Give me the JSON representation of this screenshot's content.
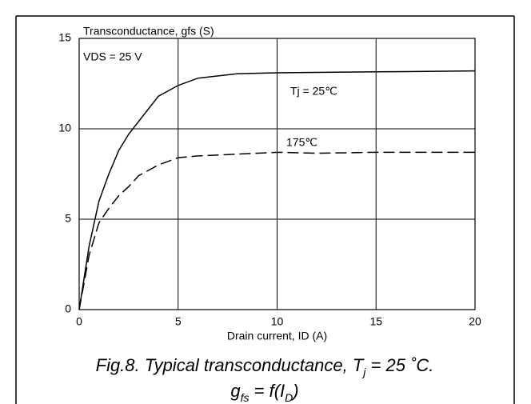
{
  "chart_data": {
    "type": "line",
    "ylabel": "Transconductance, gfs (S)",
    "xlabel": "Drain current, ID (A)",
    "annotations": [
      "VDS = 25 V"
    ],
    "caption": [
      [
        "Fig.8.   Typical transconductance, T",
        "j",
        " = 25 ˚C."
      ],
      [
        "g",
        "fs",
        " = f(I",
        "D",
        ")"
      ]
    ],
    "x": [
      0,
      0.5,
      1,
      1.5,
      2,
      2.5,
      3,
      4,
      5,
      6,
      8,
      10,
      12,
      15,
      20
    ],
    "series": [
      {
        "name": "Tj = 25℃",
        "color": "#000000",
        "dash": false,
        "values": [
          0,
          3.5,
          6,
          7.5,
          8.8,
          9.7,
          10.4,
          11.8,
          12.4,
          12.8,
          13.05,
          13.1,
          13.12,
          13.15,
          13.2
        ]
      },
      {
        "name": "175℃",
        "color": "#000000",
        "dash": true,
        "values": [
          0,
          3,
          4.8,
          5.6,
          6.3,
          6.8,
          7.4,
          8,
          8.4,
          8.5,
          8.6,
          8.7,
          8.65,
          8.7,
          8.7
        ]
      }
    ],
    "xlim": [
      0,
      20
    ],
    "xticks": [
      0,
      5,
      10,
      15,
      20
    ],
    "ylim": [
      0,
      15
    ],
    "yticks": [
      0,
      5,
      10,
      15
    ],
    "grid": true
  }
}
